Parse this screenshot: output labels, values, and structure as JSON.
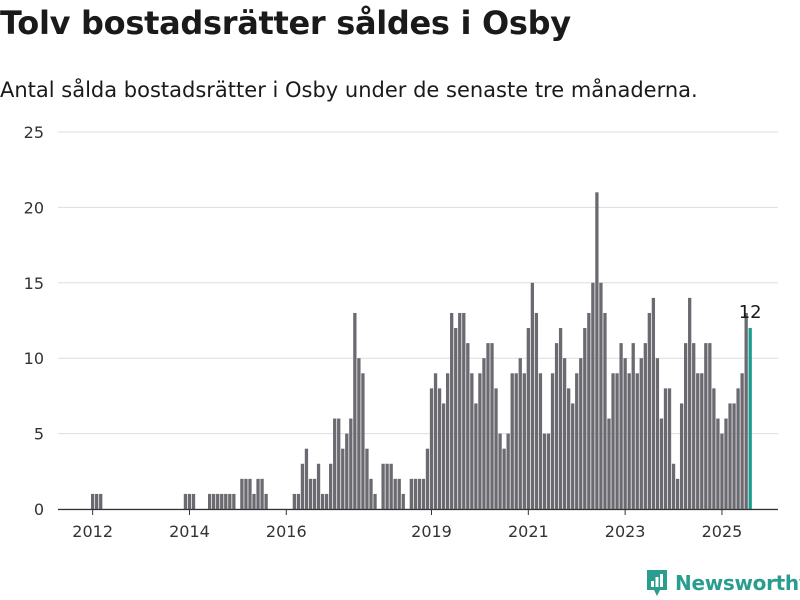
{
  "header": {
    "title": "Tolv bostadsrätter såldes i Osby",
    "subtitle": "Antal sålda bostadsrätter i Osby under de senaste tre månaderna."
  },
  "brand": {
    "name": "Newsworthy",
    "icon": "newsworthy-logo-icon",
    "color": "#2a9d8f"
  },
  "chart_data": {
    "type": "bar",
    "title": "Tolv bostadsrätter såldes i Osby",
    "subtitle": "Antal sålda bostadsrätter i Osby under de senaste tre månaderna.",
    "xlabel": "",
    "ylabel": "",
    "x_ticks": [
      "2012",
      "2014",
      "2016",
      "2019",
      "2021",
      "2023",
      "2025"
    ],
    "y_ticks": [
      0,
      5,
      10,
      15,
      20,
      25
    ],
    "ylim": [
      0,
      25
    ],
    "grid": true,
    "bar_color": "#6b6a70",
    "highlight_color": "#1a9c8e",
    "highlight_label": "12",
    "values": [
      1,
      1,
      1,
      0,
      0,
      0,
      0,
      0,
      0,
      0,
      0,
      0,
      0,
      0,
      0,
      0,
      0,
      0,
      0,
      0,
      0,
      0,
      0,
      1,
      1,
      1,
      0,
      0,
      0,
      1,
      1,
      1,
      1,
      1,
      1,
      1,
      0,
      2,
      2,
      2,
      1,
      2,
      2,
      1,
      0,
      0,
      0,
      0,
      0,
      0,
      1,
      1,
      3,
      4,
      2,
      2,
      3,
      1,
      1,
      3,
      6,
      6,
      4,
      5,
      6,
      13,
      10,
      9,
      4,
      2,
      1,
      0,
      3,
      3,
      3,
      2,
      2,
      1,
      0,
      2,
      2,
      2,
      2,
      4,
      8,
      9,
      8,
      7,
      9,
      13,
      12,
      13,
      13,
      11,
      9,
      7,
      9,
      10,
      11,
      11,
      8,
      5,
      4,
      5,
      9,
      9,
      10,
      9,
      12,
      15,
      13,
      9,
      5,
      5,
      9,
      11,
      12,
      10,
      8,
      7,
      9,
      10,
      12,
      13,
      15,
      21,
      15,
      13,
      6,
      9,
      9,
      11,
      10,
      9,
      11,
      9,
      10,
      11,
      13,
      14,
      10,
      6,
      8,
      8,
      3,
      2,
      7,
      11,
      14,
      11,
      9,
      9,
      11,
      11,
      8,
      6,
      5,
      6,
      7,
      7,
      8,
      9,
      13,
      12
    ]
  }
}
